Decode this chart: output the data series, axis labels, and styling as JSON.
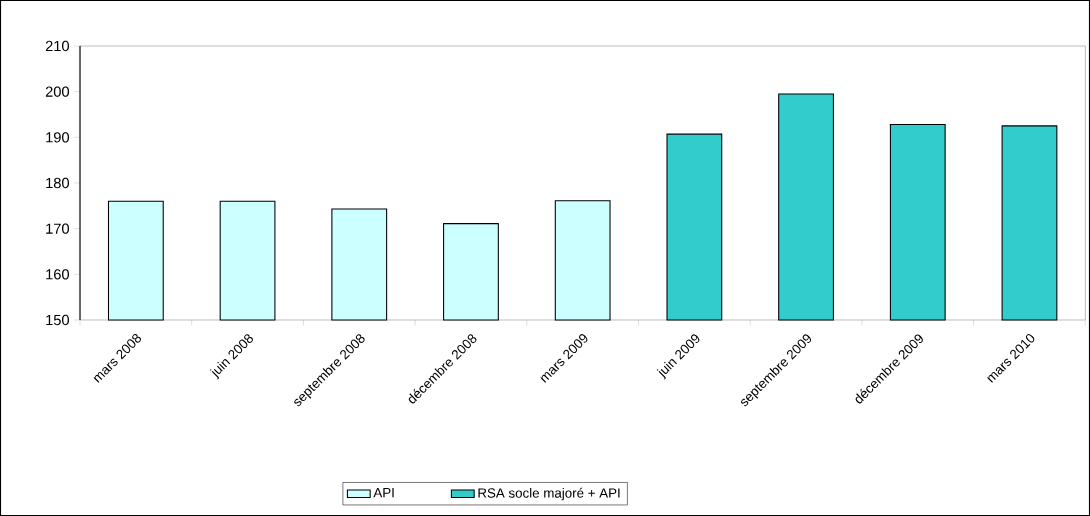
{
  "chart_data": {
    "type": "bar",
    "categories": [
      "mars 2008",
      "juin 2008",
      "septembre 2008",
      "décembre 2008",
      "mars 2009",
      "juin 2009",
      "septembre 2009",
      "décembre 2009",
      "mars 2010"
    ],
    "series": [
      {
        "name": "API",
        "color": "#ccffff",
        "values": [
          176.0,
          176.0,
          174.3,
          171.1,
          176.1,
          null,
          null,
          null,
          null
        ]
      },
      {
        "name": "RSA socle majoré + API",
        "color": "#33cccc",
        "values": [
          null,
          null,
          null,
          null,
          null,
          190.7,
          199.5,
          192.8,
          192.5
        ]
      }
    ],
    "ylim": [
      150,
      210
    ],
    "yticks": [
      150,
      160,
      170,
      180,
      190,
      200,
      210
    ],
    "grid": false,
    "legend": "bottom"
  }
}
